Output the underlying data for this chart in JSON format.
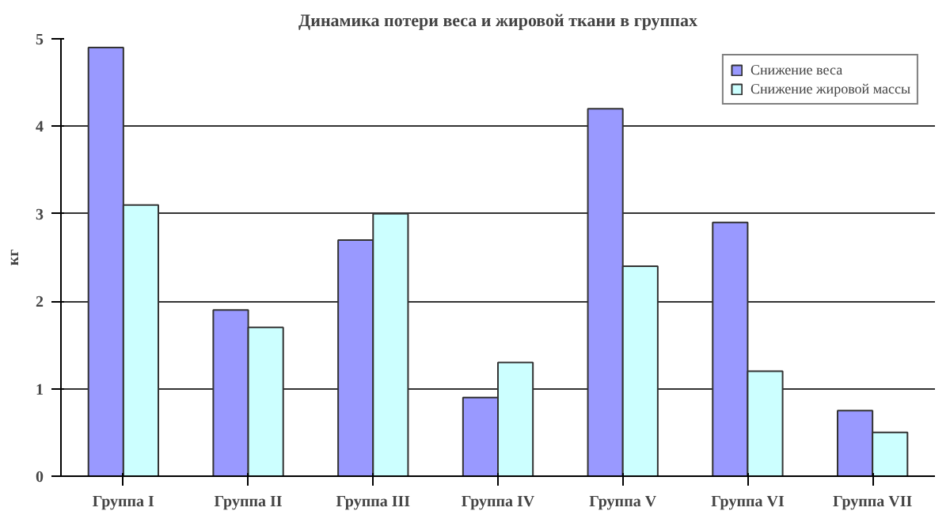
{
  "chart_data": {
    "type": "bar",
    "title": "Динамика потери веса и жировой ткани в группах",
    "ylabel": "кг",
    "categories": [
      "Группа I",
      "Группа II",
      "Группа III",
      "Группа IV",
      "Группа V",
      "Группа VI",
      "Группа VII"
    ],
    "series": [
      {
        "name": "Снижение веса",
        "color": "#9999ff",
        "values": [
          4.9,
          1.9,
          2.7,
          0.9,
          4.2,
          2.9,
          0.75
        ]
      },
      {
        "name": "Снижение жировой массы",
        "color": "#ccffff",
        "values": [
          3.1,
          1.7,
          3.0,
          1.3,
          2.4,
          1.2,
          0.5
        ]
      }
    ],
    "ylim": [
      0,
      5
    ],
    "yticks": [
      0,
      1,
      2,
      3,
      4,
      5
    ],
    "grid": "y",
    "legend": "top right"
  }
}
